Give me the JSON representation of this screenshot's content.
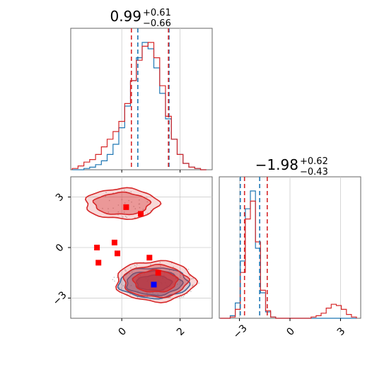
{
  "chart_data": [
    {
      "type": "histogram",
      "panel": "top-left marginal",
      "title_value": "0.99",
      "title_plus": "+0.61",
      "title_minus": "−0.66",
      "x": [
        -1.6,
        -1.4,
        -1.2,
        -1.0,
        -0.8,
        -0.6,
        -0.4,
        -0.2,
        0.0,
        0.2,
        0.4,
        0.6,
        0.8,
        1.0,
        1.2,
        1.4,
        1.6,
        1.8,
        2.0,
        2.2,
        2.4,
        2.6,
        2.8
      ],
      "series": [
        {
          "color": "#1f77b4",
          "values": [
            0,
            0,
            0.01,
            0.02,
            0.04,
            0.07,
            0.12,
            0.2,
            0.33,
            0.5,
            0.7,
            0.88,
            1.0,
            0.95,
            0.8,
            0.6,
            0.4,
            0.24,
            0.12,
            0.05,
            0.02,
            0.01,
            0
          ]
        },
        {
          "color": "#d62728",
          "values": [
            0.01,
            0.03,
            0.06,
            0.08,
            0.12,
            0.18,
            0.24,
            0.3,
            0.38,
            0.52,
            0.7,
            0.86,
            0.97,
            1.0,
            0.88,
            0.66,
            0.42,
            0.24,
            0.12,
            0.05,
            0.02,
            0.01,
            0
          ]
        }
      ],
      "quantile_lines": {
        "blue": [
          0.55,
          1.62
        ],
        "red": [
          0.33,
          1.6
        ]
      },
      "xlim": [
        -1.75,
        3.1
      ]
    },
    {
      "type": "histogram",
      "panel": "bottom-right marginal",
      "title_value": "−1.98",
      "title_plus": "+0.62",
      "title_minus": "−0.43",
      "x": [
        -4.0,
        -3.7,
        -3.4,
        -3.1,
        -2.8,
        -2.5,
        -2.2,
        -1.9,
        -1.6,
        -1.3,
        -1.0,
        -0.7,
        -0.4,
        -0.1,
        0.2,
        0.5,
        0.8,
        1.1,
        1.4,
        1.7,
        2.0,
        2.3,
        2.6,
        2.9,
        3.2,
        3.5,
        3.8
      ],
      "series": [
        {
          "color": "#1f77b4",
          "values": [
            0,
            0,
            0.02,
            0.12,
            0.45,
            0.86,
            1.0,
            0.55,
            0.2,
            0.05,
            0.01,
            0,
            0,
            0,
            0,
            0,
            0,
            0,
            0,
            0,
            0,
            0,
            0,
            0,
            0,
            0,
            0
          ]
        },
        {
          "color": "#d62728",
          "values": [
            0,
            0,
            0.01,
            0.07,
            0.36,
            0.78,
            0.92,
            0.6,
            0.22,
            0.06,
            0.01,
            0,
            0,
            0,
            0,
            0,
            0,
            0,
            0.01,
            0.02,
            0.04,
            0.08,
            0.11,
            0.1,
            0.07,
            0.03,
            0.01
          ]
        }
      ],
      "quantile_lines": {
        "blue": [
          -2.95,
          -1.8
        ],
        "red": [
          -2.7,
          -1.35
        ]
      },
      "xlim": [
        -4.2,
        4.2
      ],
      "xticks": [
        "−3",
        "0",
        "3"
      ]
    },
    {
      "type": "scatter",
      "panel": "bottom-left 2D",
      "xlim": [
        -1.75,
        3.1
      ],
      "ylim": [
        -4.2,
        4.2
      ],
      "xticks": [
        "0",
        "2"
      ],
      "yticks": [
        "3",
        "0",
        "−3"
      ],
      "red_markers": [
        [
          0.15,
          2.4
        ],
        [
          0.65,
          2.0
        ],
        [
          -0.85,
          0.0
        ],
        [
          -0.25,
          0.3
        ],
        [
          -0.15,
          -0.35
        ],
        [
          0.95,
          -0.6
        ],
        [
          -0.8,
          -0.9
        ],
        [
          1.25,
          -1.5
        ]
      ],
      "blue_markers": [
        [
          1.1,
          -2.2
        ]
      ],
      "contours": [
        {
          "color": "#1f77b4",
          "cx": 1.1,
          "cy": -2.1,
          "levels": [
            [
              1.2,
              0.9
            ],
            [
              0.95,
              0.72
            ],
            [
              0.6,
              0.45
            ]
          ]
        },
        {
          "color": "#d62728",
          "cx": 1.15,
          "cy": -2.0,
          "levels": [
            [
              1.35,
              1.2
            ],
            [
              1.1,
              0.95
            ],
            [
              0.75,
              0.65
            ]
          ]
        },
        {
          "color": "#d62728",
          "cx": 0.0,
          "cy": 2.6,
          "levels": [
            [
              1.25,
              0.9
            ],
            [
              0.95,
              0.65
            ]
          ]
        }
      ]
    }
  ]
}
